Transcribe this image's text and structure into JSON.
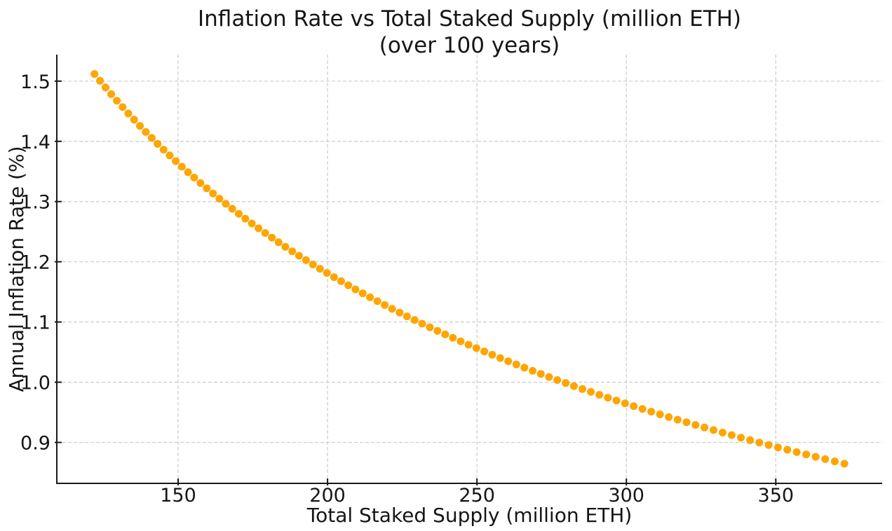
{
  "figure": {
    "title_line1": "Inflation Rate vs Total Staked Supply (million ETH)",
    "title_line2": "(over 100 years)",
    "background_color": "#ffffff",
    "text_color": "#151515"
  },
  "chart_data": {
    "type": "scatter",
    "title": "Inflation Rate vs Total Staked Supply (million ETH)\n(over 100 years)",
    "xlabel": "Total Staked Supply (million ETH)",
    "ylabel": "Annual Inflation Rate (%)",
    "x_tick_labels": [
      "150",
      "200",
      "250",
      "300",
      "350"
    ],
    "x_ticks": [
      150,
      200,
      250,
      300,
      350
    ],
    "y_tick_labels": [
      "0.9",
      "1.0",
      "1.1",
      "1.2",
      "1.3",
      "1.4",
      "1.5"
    ],
    "y_ticks": [
      0.9,
      1.0,
      1.1,
      1.2,
      1.3,
      1.4,
      1.5
    ],
    "xlim": [
      109.4,
      385.6
    ],
    "ylim": [
      0.832,
      1.544
    ],
    "grid": true,
    "grid_style": "dashed",
    "legend_position": "none",
    "marker_color": "#ffa500",
    "grid_color": "#cccccc",
    "spine_color": "#1a1a1a",
    "marker_radius_px": 5.5,
    "series": [
      {
        "name": "annual-inflation-vs-staked-supply",
        "points": [
          [
            122.0,
            1.5119
          ],
          [
            123.85,
            1.5006
          ],
          [
            125.72,
            1.4894
          ],
          [
            127.6,
            1.4784
          ],
          [
            129.49,
            1.4676
          ],
          [
            131.4,
            1.4569
          ],
          [
            133.32,
            1.4463
          ],
          [
            135.25,
            1.436
          ],
          [
            137.2,
            1.4257
          ],
          [
            139.17,
            1.4156
          ],
          [
            141.14,
            1.4057
          ],
          [
            143.13,
            1.3959
          ],
          [
            145.14,
            1.3862
          ],
          [
            147.16,
            1.3767
          ],
          [
            149.19,
            1.3672
          ],
          [
            151.24,
            1.358
          ],
          [
            153.3,
            1.3488
          ],
          [
            155.37,
            1.3398
          ],
          [
            157.46,
            1.3308
          ],
          [
            159.56,
            1.322
          ],
          [
            161.68,
            1.3134
          ],
          [
            163.81,
            1.3048
          ],
          [
            165.96,
            1.2963
          ],
          [
            168.11,
            1.288
          ],
          [
            170.29,
            1.2797
          ],
          [
            172.47,
            1.2716
          ],
          [
            174.67,
            1.2636
          ],
          [
            176.89,
            1.2556
          ],
          [
            179.12,
            1.2478
          ],
          [
            181.36,
            1.2401
          ],
          [
            183.61,
            1.2324
          ],
          [
            185.88,
            1.2249
          ],
          [
            188.17,
            1.2174
          ],
          [
            190.46,
            1.2101
          ],
          [
            192.78,
            1.2028
          ],
          [
            195.1,
            1.1956
          ],
          [
            197.44,
            1.1885
          ],
          [
            199.8,
            1.1815
          ],
          [
            202.16,
            1.1745
          ],
          [
            204.54,
            1.1677
          ],
          [
            206.94,
            1.1609
          ],
          [
            209.35,
            1.1542
          ],
          [
            211.77,
            1.1476
          ],
          [
            214.21,
            1.141
          ],
          [
            216.66,
            1.1346
          ],
          [
            219.13,
            1.1282
          ],
          [
            221.6,
            1.1218
          ],
          [
            224.1,
            1.1156
          ],
          [
            226.6,
            1.1094
          ],
          [
            229.13,
            1.1033
          ],
          [
            231.66,
            1.0972
          ],
          [
            234.21,
            1.0912
          ],
          [
            236.77,
            1.0853
          ],
          [
            239.35,
            1.0794
          ],
          [
            241.94,
            1.0737
          ],
          [
            244.54,
            1.0679
          ],
          [
            247.16,
            1.0622
          ],
          [
            249.79,
            1.0566
          ],
          [
            252.44,
            1.0511
          ],
          [
            255.1,
            1.0456
          ],
          [
            257.78,
            1.0401
          ],
          [
            260.46,
            1.0348
          ],
          [
            263.17,
            1.0294
          ],
          [
            265.88,
            1.0242
          ],
          [
            268.61,
            1.019
          ],
          [
            271.36,
            1.0138
          ],
          [
            274.11,
            1.0087
          ],
          [
            276.89,
            1.0036
          ],
          [
            279.67,
            0.9986
          ],
          [
            282.47,
            0.9936
          ],
          [
            285.29,
            0.9887
          ],
          [
            288.11,
            0.9839
          ],
          [
            290.95,
            0.979
          ],
          [
            293.81,
            0.9743
          ],
          [
            296.68,
            0.9696
          ],
          [
            299.56,
            0.9649
          ],
          [
            302.46,
            0.9602
          ],
          [
            305.37,
            0.9557
          ],
          [
            308.3,
            0.9511
          ],
          [
            311.24,
            0.9466
          ],
          [
            314.19,
            0.9421
          ],
          [
            317.16,
            0.9377
          ],
          [
            320.14,
            0.9334
          ],
          [
            323.13,
            0.929
          ],
          [
            326.14,
            0.9247
          ],
          [
            329.16,
            0.9205
          ],
          [
            332.2,
            0.9163
          ],
          [
            335.25,
            0.9121
          ],
          [
            338.32,
            0.9079
          ],
          [
            341.4,
            0.9038
          ],
          [
            344.49,
            0.8998
          ],
          [
            347.6,
            0.8957
          ],
          [
            350.72,
            0.8917
          ],
          [
            353.85,
            0.8878
          ],
          [
            357.0,
            0.8839
          ],
          [
            360.16,
            0.88
          ],
          [
            363.34,
            0.8761
          ],
          [
            366.53,
            0.8723
          ],
          [
            369.73,
            0.8685
          ],
          [
            372.95,
            0.8647
          ]
        ]
      }
    ]
  }
}
